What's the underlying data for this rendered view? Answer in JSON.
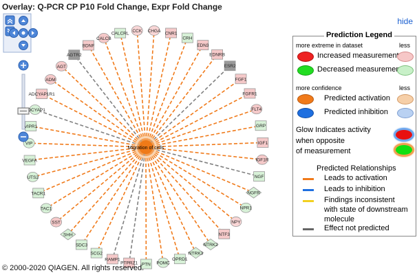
{
  "header": {
    "title": "Overlay: Q-PCR CP P10 Fold Change, Expr Fold Change",
    "hide_label": "hide"
  },
  "footer": {
    "copyright": "© 2000-2020 QIAGEN. All rights reserved."
  },
  "network": {
    "center_label": "Migration of cells",
    "nodes": [
      {
        "label": "CHGA",
        "shape": "oval",
        "fill": "#f9d6d6",
        "edge": "#f07a1a"
      },
      {
        "label": "CNR1",
        "shape": "rect",
        "fill": "#f5c9c9",
        "edge": "#f07a1a"
      },
      {
        "label": "CRH",
        "shape": "rect",
        "fill": "#d7f1d7",
        "edge": "#f07a1a"
      },
      {
        "label": "EDN3",
        "shape": "rect",
        "fill": "#f5c9c9",
        "edge": "#f07a1a"
      },
      {
        "label": "EDNRB",
        "shape": "rect",
        "fill": "#f5c9c9",
        "edge": "#f07a1a"
      },
      {
        "label": "ESR2",
        "shape": "rect",
        "fill": "#9a9a9a",
        "edge": "#808080"
      },
      {
        "label": "FGF1",
        "shape": "rect",
        "fill": "#f5c9c9",
        "edge": "#f07a1a"
      },
      {
        "label": "FGFR1",
        "shape": "rect",
        "fill": "#f5c9c9",
        "edge": "#f07a1a"
      },
      {
        "label": "FLT4",
        "shape": "oval",
        "fill": "#f5c9c9",
        "edge": "#f07a1a"
      },
      {
        "label": "GRP",
        "shape": "rect",
        "fill": "#d7f1d7",
        "edge": "#f07a1a"
      },
      {
        "label": "IGF1",
        "shape": "rect",
        "fill": "#f5c9c9",
        "edge": "#f07a1a"
      },
      {
        "label": "IGF1R",
        "shape": "oval",
        "fill": "#f5c9c9",
        "edge": "#f07a1a"
      },
      {
        "label": "NGF",
        "shape": "rect",
        "fill": "#d7f1d7",
        "edge": "#808080"
      },
      {
        "label": "NGFR",
        "shape": "diamond",
        "fill": "#d7f1d7",
        "edge": "#f07a1a"
      },
      {
        "label": "NPR1",
        "shape": "oval",
        "fill": "#d7f1d7",
        "edge": "#f07a1a"
      },
      {
        "label": "NPY",
        "shape": "oval",
        "fill": "#f9d6d6",
        "edge": "#f07a1a"
      },
      {
        "label": "NTF3",
        "shape": "rect",
        "fill": "#f5c9c9",
        "edge": "#f07a1a"
      },
      {
        "label": "NTRK2",
        "shape": "diamond",
        "fill": "#d7f1d7",
        "edge": "#f07a1a"
      },
      {
        "label": "NTRK3",
        "shape": "diamond",
        "fill": "#d7f1d7",
        "edge": "#f07a1a"
      },
      {
        "label": "OPRD1",
        "shape": "rect",
        "fill": "#d7f1d7",
        "edge": "#f07a1a"
      },
      {
        "label": "POMC",
        "shape": "oval",
        "fill": "#d7f1d7",
        "edge": "#f07a1a"
      },
      {
        "label": "PTN",
        "shape": "rect",
        "fill": "#d7f1d7",
        "edge": "#f07a1a"
      },
      {
        "label": "PTPRZ1",
        "shape": "rect",
        "fill": "#f5c9c9",
        "edge": "#808080"
      },
      {
        "label": "RAMP1",
        "shape": "rect",
        "fill": "#f5c9c9",
        "edge": "#808080"
      },
      {
        "label": "SCG2",
        "shape": "rect",
        "fill": "#d7f1d7",
        "edge": "#f07a1a"
      },
      {
        "label": "SDC3",
        "shape": "rect",
        "fill": "#d7f1d7",
        "edge": "#f07a1a"
      },
      {
        "label": "SHH",
        "shape": "diamond",
        "fill": "#d7f1d7",
        "edge": "#f07a1a"
      },
      {
        "label": "SST",
        "shape": "oval",
        "fill": "#f5c9c9",
        "edge": "#f07a1a"
      },
      {
        "label": "TAC1",
        "shape": "oval",
        "fill": "#d7f1d7",
        "edge": "#f07a1a"
      },
      {
        "label": "TACR1",
        "shape": "rect",
        "fill": "#d7f1d7",
        "edge": "#f07a1a"
      },
      {
        "label": "UTS2",
        "shape": "oval",
        "fill": "#d7f1d7",
        "edge": "#f07a1a"
      },
      {
        "label": "VEGFA",
        "shape": "rect",
        "fill": "#d7f1d7",
        "edge": "#f07a1a"
      },
      {
        "label": "VIP",
        "shape": "oval",
        "fill": "#d7f1d7",
        "edge": "#f07a1a"
      },
      {
        "label": "VIPR1",
        "shape": "rect",
        "fill": "#d7f1d7",
        "edge": "#f07a1a"
      },
      {
        "label": "ADCYAP1",
        "shape": "oval",
        "fill": "#d7f1d7",
        "edge": "#808080"
      },
      {
        "label": "ADCYAP1R1",
        "shape": "rect",
        "fill": "#f5c9c9",
        "edge": "#f07a1a"
      },
      {
        "label": "ADM",
        "shape": "oval",
        "fill": "#f5c9c9",
        "edge": "#f07a1a"
      },
      {
        "label": "AGT",
        "shape": "oval",
        "fill": "#f5c9c9",
        "edge": "#f07a1a"
      },
      {
        "label": "AGTR2",
        "shape": "rect",
        "fill": "#9a9a9a",
        "edge": "#808080"
      },
      {
        "label": "BDNF",
        "shape": "rect",
        "fill": "#f5c9c9",
        "edge": "#f07a1a"
      },
      {
        "label": "CALCB",
        "shape": "oval",
        "fill": "#f5c9c9",
        "edge": "#f07a1a"
      },
      {
        "label": "CALCRL",
        "shape": "rect",
        "fill": "#d7f1d7",
        "edge": "#f07a1a"
      },
      {
        "label": "CCK",
        "shape": "oval",
        "fill": "#f9d6d6",
        "edge": "#f07a1a"
      }
    ]
  },
  "legend": {
    "title": "Prediction Legend",
    "more_extreme": "more extreme in dataset",
    "less_1": "less",
    "increased": "Increased measurement",
    "decreased": "Decreased measurement",
    "more_confidence": "more confidence",
    "less_2": "less",
    "pred_activation": "Predicted activation",
    "pred_inhibition": "Predicted inhibition",
    "glow_1": "Glow Indicates activity",
    "glow_2": "when opposite",
    "glow_3": "of measurement",
    "relationships_title": "Predicted Relationships",
    "rel_activation": "Leads to activation",
    "rel_inhibition": "Leads to inhibition",
    "rel_inconsistent_1": "Findings inconsistent",
    "rel_inconsistent_2": "with state of downstream",
    "rel_inconsistent_3": "molecule",
    "rel_not_predicted": "Effect not predicted",
    "colors": {
      "increased_strong": "#ee2222",
      "increased_weak": "#f6c7c7",
      "decreased_strong": "#22dd22",
      "decreased_weak": "#c8f0c8",
      "activation_strong": "#f07a1a",
      "activation_weak": "#f6cfa8",
      "inhibition_strong": "#1e6fe0",
      "inhibition_weak": "#b9d1f2",
      "inconsistent": "#f2d020",
      "not_predicted": "#666666"
    }
  }
}
